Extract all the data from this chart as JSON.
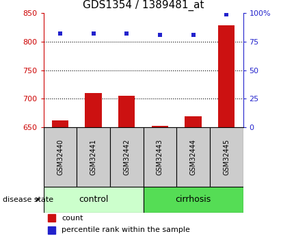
{
  "title": "GDS1354 / 1389481_at",
  "categories": [
    "GSM32440",
    "GSM32441",
    "GSM32442",
    "GSM32443",
    "GSM32444",
    "GSM32445"
  ],
  "bar_values": [
    662,
    710,
    705,
    653,
    669,
    828
  ],
  "percentile_values": [
    82,
    82,
    82,
    81,
    81,
    99
  ],
  "ylim_left": [
    650,
    850
  ],
  "ylim_right": [
    0,
    100
  ],
  "yticks_left": [
    650,
    700,
    750,
    800,
    850
  ],
  "yticks_right": [
    0,
    25,
    50,
    75,
    100
  ],
  "ytick_labels_right": [
    "0",
    "25",
    "50",
    "75",
    "100%"
  ],
  "bar_color": "#cc1111",
  "scatter_color": "#2222cc",
  "grid_values": [
    700,
    750,
    800
  ],
  "control_label": "control",
  "cirrhosis_label": "cirrhosis",
  "control_color": "#ccffcc",
  "cirrhosis_color": "#55dd55",
  "disease_label": "disease state",
  "legend_count": "count",
  "legend_percentile": "percentile rank within the sample",
  "title_fontsize": 11,
  "axis_color_left": "#cc0000",
  "axis_color_right": "#2222cc",
  "bar_width": 0.5,
  "bg_color": "#ffffff",
  "label_box_color": "#cccccc",
  "n_control": 3,
  "n_total": 6
}
